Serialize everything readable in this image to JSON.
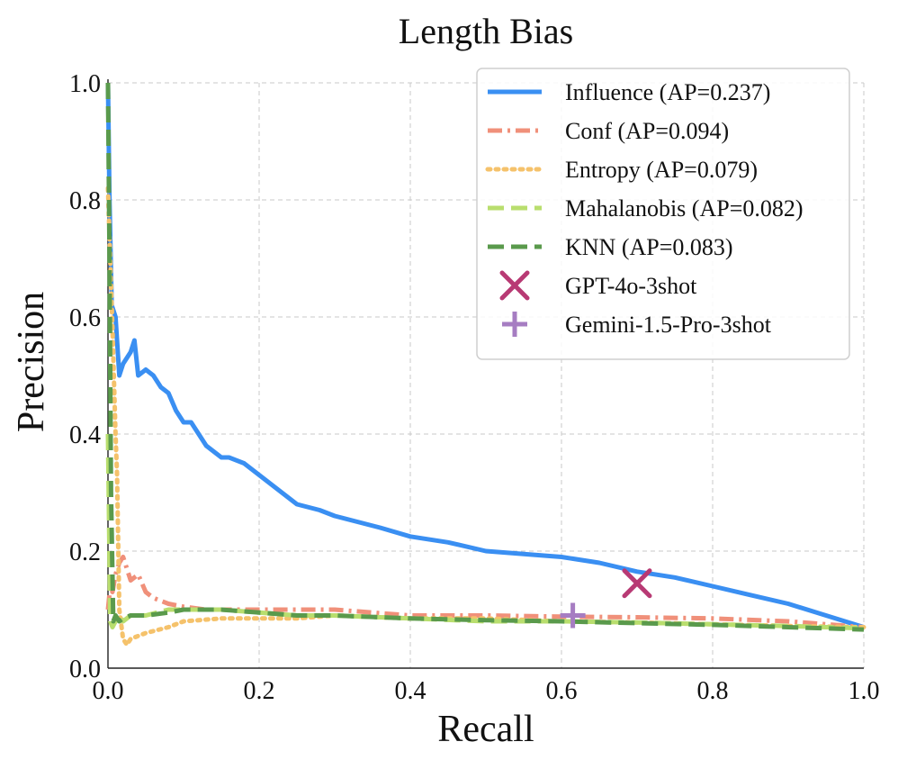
{
  "chart_data": {
    "type": "line",
    "title": "Length Bias",
    "xlabel": "Recall",
    "ylabel": "Precision",
    "xlim": [
      0.0,
      1.0
    ],
    "ylim": [
      0.0,
      1.0
    ],
    "xticks": [
      0.0,
      0.2,
      0.4,
      0.6,
      0.8,
      1.0
    ],
    "yticks": [
      0.0,
      0.2,
      0.4,
      0.6,
      0.8,
      1.0
    ],
    "xtick_labels": [
      "0.0",
      "0.2",
      "0.4",
      "0.6",
      "0.8",
      "1.0"
    ],
    "ytick_labels": [
      "0.0",
      "0.2",
      "0.4",
      "0.6",
      "0.8",
      "1.0"
    ],
    "grid": true,
    "legend_position": "top-right",
    "series": [
      {
        "name": "Influence (AP=0.237)",
        "color": "#3a8ff2",
        "style": "solid",
        "x": [
          0.0,
          0.002,
          0.005,
          0.01,
          0.015,
          0.02,
          0.025,
          0.03,
          0.035,
          0.04,
          0.05,
          0.06,
          0.07,
          0.08,
          0.09,
          0.1,
          0.11,
          0.12,
          0.13,
          0.14,
          0.15,
          0.16,
          0.18,
          0.2,
          0.22,
          0.25,
          0.28,
          0.3,
          0.33,
          0.36,
          0.4,
          0.45,
          0.5,
          0.55,
          0.6,
          0.65,
          0.7,
          0.75,
          0.8,
          0.85,
          0.9,
          0.95,
          1.0
        ],
        "y": [
          1.0,
          0.8,
          0.62,
          0.6,
          0.5,
          0.52,
          0.53,
          0.54,
          0.56,
          0.5,
          0.51,
          0.5,
          0.48,
          0.47,
          0.44,
          0.42,
          0.42,
          0.4,
          0.38,
          0.37,
          0.36,
          0.36,
          0.35,
          0.33,
          0.31,
          0.28,
          0.27,
          0.26,
          0.25,
          0.24,
          0.225,
          0.215,
          0.2,
          0.195,
          0.19,
          0.18,
          0.165,
          0.155,
          0.14,
          0.125,
          0.11,
          0.09,
          0.07
        ]
      },
      {
        "name": "Conf (AP=0.094)",
        "color": "#f0907a",
        "style": "dashdot",
        "x": [
          0.0,
          0.003,
          0.006,
          0.01,
          0.015,
          0.02,
          0.025,
          0.03,
          0.04,
          0.05,
          0.06,
          0.08,
          0.1,
          0.13,
          0.16,
          0.2,
          0.25,
          0.3,
          0.35,
          0.4,
          0.5,
          0.6,
          0.7,
          0.8,
          0.9,
          1.0
        ],
        "y": [
          0.1,
          0.14,
          0.13,
          0.16,
          0.18,
          0.19,
          0.17,
          0.15,
          0.16,
          0.13,
          0.12,
          0.11,
          0.105,
          0.1,
          0.1,
          0.1,
          0.1,
          0.1,
          0.095,
          0.09,
          0.09,
          0.088,
          0.087,
          0.085,
          0.08,
          0.07
        ]
      },
      {
        "name": "Entropy (AP=0.079)",
        "color": "#f5c26b",
        "style": "dotted",
        "x": [
          0.0,
          0.003,
          0.006,
          0.01,
          0.012,
          0.015,
          0.02,
          0.025,
          0.03,
          0.05,
          0.08,
          0.1,
          0.15,
          0.2,
          0.25,
          0.3,
          0.4,
          0.5,
          0.6,
          0.7,
          0.8,
          0.9,
          1.0
        ],
        "y": [
          0.82,
          0.7,
          0.58,
          0.4,
          0.33,
          0.1,
          0.05,
          0.04,
          0.05,
          0.06,
          0.07,
          0.08,
          0.085,
          0.085,
          0.085,
          0.09,
          0.085,
          0.085,
          0.08,
          0.078,
          0.075,
          0.072,
          0.07
        ]
      },
      {
        "name": "Mahalanobis (AP=0.082)",
        "color": "#b9de6e",
        "style": "dashed",
        "x": [
          0.0,
          0.003,
          0.006,
          0.01,
          0.015,
          0.02,
          0.03,
          0.05,
          0.08,
          0.1,
          0.15,
          0.2,
          0.25,
          0.3,
          0.4,
          0.5,
          0.6,
          0.7,
          0.8,
          0.9,
          1.0
        ],
        "y": [
          0.4,
          0.08,
          0.07,
          0.08,
          0.09,
          0.08,
          0.09,
          0.09,
          0.1,
          0.1,
          0.1,
          0.095,
          0.09,
          0.09,
          0.085,
          0.08,
          0.08,
          0.078,
          0.075,
          0.072,
          0.068
        ]
      },
      {
        "name": "KNN (AP=0.083)",
        "color": "#5a9a4c",
        "style": "dashed",
        "x": [
          0.0,
          0.002,
          0.004,
          0.007,
          0.01,
          0.015,
          0.02,
          0.03,
          0.05,
          0.08,
          0.1,
          0.15,
          0.2,
          0.25,
          0.3,
          0.4,
          0.5,
          0.6,
          0.7,
          0.8,
          0.9,
          1.0
        ],
        "y": [
          1.0,
          0.7,
          0.3,
          0.08,
          0.09,
          0.08,
          0.085,
          0.09,
          0.09,
          0.095,
          0.1,
          0.1,
          0.095,
          0.09,
          0.09,
          0.085,
          0.082,
          0.08,
          0.077,
          0.074,
          0.07,
          0.066
        ]
      }
    ],
    "points": [
      {
        "name": "GPT-4o-3shot",
        "marker": "x",
        "color": "#b83a74",
        "x": 0.7,
        "y": 0.145
      },
      {
        "name": "Gemini-1.5-Pro-3shot",
        "marker": "plus",
        "color": "#a67dc2",
        "x": 0.615,
        "y": 0.09
      }
    ]
  }
}
